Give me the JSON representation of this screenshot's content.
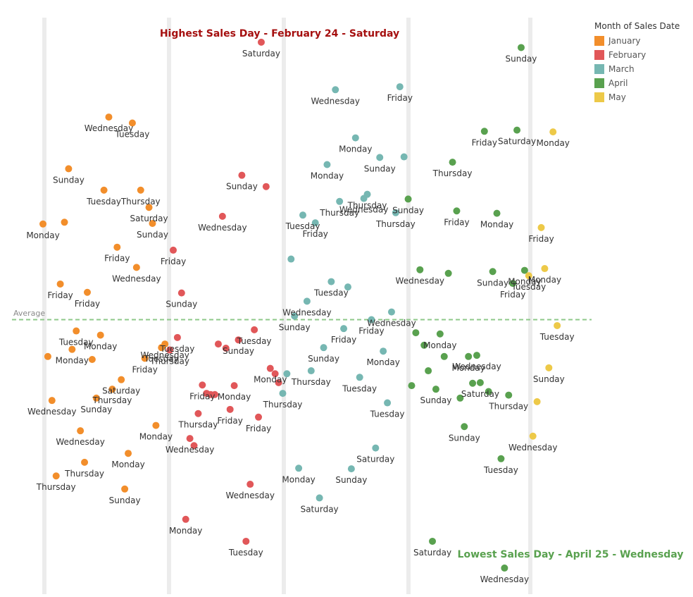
{
  "chart_data": {
    "type": "scatter",
    "title_high": "Highest Sales Day - February 24 - Saturday",
    "title_low": "Lowest Sales Day - April 25 - Wednesday",
    "reference_line_label": "Average",
    "legend": {
      "title": "Month of Sales Date",
      "placement": "top-right",
      "items": [
        {
          "name": "January",
          "color": "#f28e2b"
        },
        {
          "name": "February",
          "color": "#e15759"
        },
        {
          "name": "March",
          "color": "#76b7b2"
        },
        {
          "name": "April",
          "color": "#59a14f"
        },
        {
          "name": "May",
          "color": "#edc948"
        }
      ]
    },
    "colors": {
      "high_title": "#a50f0f",
      "low_title": "#59a14f",
      "average_line": "#8fc98a",
      "band": "#ececec"
    },
    "bands": 6,
    "grid": false,
    "axes_visible": false,
    "x_range": [
      0,
      1000
    ],
    "y_range": [
      0,
      1000
    ],
    "series": [
      {
        "name": "January",
        "points": [
          {
            "x": 157,
            "y": 803,
            "label": "Wednesday"
          },
          {
            "x": 191,
            "y": 793,
            "label": "Tuesday"
          },
          {
            "x": 99,
            "y": 716,
            "label": "Sunday"
          },
          {
            "x": 150,
            "y": 680,
            "label": "Tuesday"
          },
          {
            "x": 203,
            "y": 680,
            "label": "Thursday"
          },
          {
            "x": 215,
            "y": 651,
            "label": "Saturday"
          },
          {
            "x": 62,
            "y": 623,
            "label": "Monday"
          },
          {
            "x": 93,
            "y": 626,
            "label": ""
          },
          {
            "x": 220,
            "y": 624,
            "label": "Sunday"
          },
          {
            "x": 169,
            "y": 584,
            "label": "Friday"
          },
          {
            "x": 197,
            "y": 550,
            "label": "Wednesday"
          },
          {
            "x": 87,
            "y": 522,
            "label": "Friday"
          },
          {
            "x": 126,
            "y": 508,
            "label": "Friday"
          },
          {
            "x": 110,
            "y": 443,
            "label": "Tuesday"
          },
          {
            "x": 145,
            "y": 436,
            "label": "Monday"
          },
          {
            "x": 238,
            "y": 421,
            "label": "Wednesday"
          },
          {
            "x": 233,
            "y": 415,
            "label": "Tuesday"
          },
          {
            "x": 69,
            "y": 400,
            "label": ""
          },
          {
            "x": 104,
            "y": 412,
            "label": "Monday"
          },
          {
            "x": 133,
            "y": 395,
            "label": ""
          },
          {
            "x": 209,
            "y": 397,
            "label": "Friday"
          },
          {
            "x": 175,
            "y": 361,
            "label": "Saturday"
          },
          {
            "x": 162,
            "y": 345,
            "label": "Thursday"
          },
          {
            "x": 139,
            "y": 330,
            "label": "Sunday"
          },
          {
            "x": 75,
            "y": 326,
            "label": "Wednesday"
          },
          {
            "x": 225,
            "y": 284,
            "label": "Monday"
          },
          {
            "x": 116,
            "y": 275,
            "label": "Wednesday"
          },
          {
            "x": 185,
            "y": 237,
            "label": "Monday"
          },
          {
            "x": 122,
            "y": 222,
            "label": "Thursday"
          },
          {
            "x": 81,
            "y": 199,
            "label": "Thursday"
          },
          {
            "x": 180,
            "y": 177,
            "label": "Sunday"
          }
        ]
      },
      {
        "name": "February",
        "points": [
          {
            "x": 377,
            "y": 929,
            "label": "Saturday"
          },
          {
            "x": 349,
            "y": 705,
            "label": "Sunday"
          },
          {
            "x": 384,
            "y": 686,
            "label": ""
          },
          {
            "x": 321,
            "y": 636,
            "label": "Wednesday"
          },
          {
            "x": 250,
            "y": 579,
            "label": "Friday"
          },
          {
            "x": 262,
            "y": 507,
            "label": "Sunday"
          },
          {
            "x": 367,
            "y": 445,
            "label": "Tuesday"
          },
          {
            "x": 256,
            "y": 432,
            "label": "Tuesday"
          },
          {
            "x": 344,
            "y": 428,
            "label": "Sunday"
          },
          {
            "x": 315,
            "y": 421,
            "label": ""
          },
          {
            "x": 326,
            "y": 414,
            "label": ""
          },
          {
            "x": 245,
            "y": 411,
            "label": "Thursday"
          },
          {
            "x": 390,
            "y": 380,
            "label": "Monday"
          },
          {
            "x": 397,
            "y": 371,
            "label": ""
          },
          {
            "x": 402,
            "y": 356,
            "label": ""
          },
          {
            "x": 292,
            "y": 352,
            "label": "Friday"
          },
          {
            "x": 338,
            "y": 351,
            "label": "Monday"
          },
          {
            "x": 298,
            "y": 338,
            "label": ""
          },
          {
            "x": 304,
            "y": 336,
            "label": ""
          },
          {
            "x": 310,
            "y": 336,
            "label": ""
          },
          {
            "x": 286,
            "y": 304,
            "label": "Thursday"
          },
          {
            "x": 332,
            "y": 311,
            "label": "Friday"
          },
          {
            "x": 373,
            "y": 298,
            "label": "Friday"
          },
          {
            "x": 274,
            "y": 262,
            "label": "Wednesday"
          },
          {
            "x": 280,
            "y": 250,
            "label": ""
          },
          {
            "x": 361,
            "y": 185,
            "label": "Wednesday"
          },
          {
            "x": 268,
            "y": 126,
            "label": "Monday"
          },
          {
            "x": 355,
            "y": 89,
            "label": "Tuesday"
          }
        ]
      },
      {
        "name": "March",
        "points": [
          {
            "x": 484,
            "y": 849,
            "label": "Wednesday"
          },
          {
            "x": 577,
            "y": 854,
            "label": "Friday"
          },
          {
            "x": 513,
            "y": 768,
            "label": "Monday"
          },
          {
            "x": 472,
            "y": 723,
            "label": "Monday"
          },
          {
            "x": 548,
            "y": 735,
            "label": "Sunday"
          },
          {
            "x": 583,
            "y": 736,
            "label": ""
          },
          {
            "x": 530,
            "y": 673,
            "label": "Thursday"
          },
          {
            "x": 525,
            "y": 666,
            "label": "Wednesday"
          },
          {
            "x": 490,
            "y": 661,
            "label": "Thursday"
          },
          {
            "x": 571,
            "y": 642,
            "label": "Thursday"
          },
          {
            "x": 437,
            "y": 638,
            "label": "Tuesday"
          },
          {
            "x": 455,
            "y": 625,
            "label": "Friday"
          },
          {
            "x": 420,
            "y": 564,
            "label": ""
          },
          {
            "x": 478,
            "y": 526,
            "label": "Tuesday"
          },
          {
            "x": 502,
            "y": 517,
            "label": ""
          },
          {
            "x": 443,
            "y": 493,
            "label": "Wednesday"
          },
          {
            "x": 565,
            "y": 475,
            "label": "Wednesday"
          },
          {
            "x": 425,
            "y": 468,
            "label": "Sunday"
          },
          {
            "x": 536,
            "y": 462,
            "label": "Friday"
          },
          {
            "x": 496,
            "y": 447,
            "label": "Friday"
          },
          {
            "x": 467,
            "y": 415,
            "label": "Sunday"
          },
          {
            "x": 553,
            "y": 409,
            "label": "Monday"
          },
          {
            "x": 449,
            "y": 376,
            "label": "Thursday"
          },
          {
            "x": 414,
            "y": 371,
            "label": ""
          },
          {
            "x": 519,
            "y": 365,
            "label": "Tuesday"
          },
          {
            "x": 408,
            "y": 338,
            "label": "Thursday"
          },
          {
            "x": 559,
            "y": 322,
            "label": "Tuesday"
          },
          {
            "x": 542,
            "y": 246,
            "label": "Saturday"
          },
          {
            "x": 431,
            "y": 212,
            "label": "Monday"
          },
          {
            "x": 507,
            "y": 211,
            "label": "Sunday"
          },
          {
            "x": 461,
            "y": 162,
            "label": "Saturday"
          }
        ]
      },
      {
        "name": "April",
        "points": [
          {
            "x": 752,
            "y": 920,
            "label": "Sunday"
          },
          {
            "x": 699,
            "y": 779,
            "label": "Friday"
          },
          {
            "x": 746,
            "y": 781,
            "label": "Saturday"
          },
          {
            "x": 653,
            "y": 727,
            "label": "Thursday"
          },
          {
            "x": 589,
            "y": 665,
            "label": "Sunday"
          },
          {
            "x": 659,
            "y": 645,
            "label": "Friday"
          },
          {
            "x": 717,
            "y": 641,
            "label": "Monday"
          },
          {
            "x": 606,
            "y": 546,
            "label": "Wednesday"
          },
          {
            "x": 647,
            "y": 540,
            "label": ""
          },
          {
            "x": 711,
            "y": 543,
            "label": "Sunday"
          },
          {
            "x": 757,
            "y": 545,
            "label": "Monday"
          },
          {
            "x": 740,
            "y": 523,
            "label": "Friday"
          },
          {
            "x": 600,
            "y": 440,
            "label": ""
          },
          {
            "x": 635,
            "y": 438,
            "label": "Monday"
          },
          {
            "x": 612,
            "y": 419,
            "label": ""
          },
          {
            "x": 641,
            "y": 400,
            "label": ""
          },
          {
            "x": 676,
            "y": 400,
            "label": "Monday"
          },
          {
            "x": 688,
            "y": 402,
            "label": "Wednesday"
          },
          {
            "x": 618,
            "y": 376,
            "label": ""
          },
          {
            "x": 682,
            "y": 355,
            "label": ""
          },
          {
            "x": 693,
            "y": 356,
            "label": "Saturday"
          },
          {
            "x": 594,
            "y": 351,
            "label": ""
          },
          {
            "x": 629,
            "y": 345,
            "label": "Sunday"
          },
          {
            "x": 705,
            "y": 341,
            "label": ""
          },
          {
            "x": 734,
            "y": 335,
            "label": "Thursday"
          },
          {
            "x": 664,
            "y": 330,
            "label": ""
          },
          {
            "x": 670,
            "y": 282,
            "label": "Sunday"
          },
          {
            "x": 723,
            "y": 228,
            "label": "Tuesday"
          },
          {
            "x": 624,
            "y": 89,
            "label": "Saturday"
          },
          {
            "x": 728,
            "y": 44,
            "label": "Wednesday"
          }
        ]
      },
      {
        "name": "May",
        "points": [
          {
            "x": 798,
            "y": 778,
            "label": "Monday"
          },
          {
            "x": 781,
            "y": 617,
            "label": "Friday"
          },
          {
            "x": 786,
            "y": 548,
            "label": "Monday"
          },
          {
            "x": 763,
            "y": 536,
            "label": "Tuesday"
          },
          {
            "x": 804,
            "y": 452,
            "label": "Tuesday"
          },
          {
            "x": 792,
            "y": 381,
            "label": "Sunday"
          },
          {
            "x": 775,
            "y": 324,
            "label": ""
          },
          {
            "x": 769,
            "y": 266,
            "label": "Wednesday"
          }
        ]
      }
    ],
    "average_y": 462
  }
}
